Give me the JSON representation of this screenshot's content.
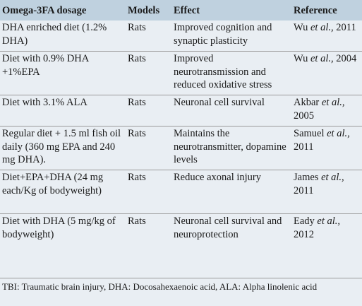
{
  "table": {
    "headers": [
      "Omega-3FA dosage",
      "Models",
      "Effect",
      "Reference"
    ],
    "rows": [
      {
        "dosage": "DHA enriched diet (1.2% DHA)",
        "model": "Rats",
        "effect": "Improved cognition and synaptic plasticity",
        "ref_author": "Wu",
        "ref_etal": "et al.,",
        "ref_year": "2011"
      },
      {
        "dosage": "Diet with 0.9% DHA +1%EPA",
        "model": "Rats",
        "effect": "Improved neurotransmission and reduced oxidative stress",
        "ref_author": "Wu",
        "ref_etal": "et al.,",
        "ref_year": "2004"
      },
      {
        "dosage": "Diet with 3.1% ALA",
        "model": "Rats",
        "effect": "Neuronal cell survival",
        "ref_author": "Akbar",
        "ref_etal": "et al.,",
        "ref_year": "2005"
      },
      {
        "dosage": "Regular diet + 1.5 ml fish oil daily (360 mg EPA and 240 mg DHA).",
        "model": "Rats",
        "effect": "Maintains the neurotransmitter, dopamine levels",
        "ref_author": "Samuel",
        "ref_etal": "et al.,",
        "ref_year": "2011"
      },
      {
        "dosage": "Diet+EPA+DHA (24 mg each/Kg of bodyweight)",
        "model": "Rats",
        "effect": "Reduce axonal injury",
        "ref_author": "James",
        "ref_etal": "et al.,",
        "ref_year": "2011"
      },
      {
        "dosage": "Diet with DHA (5 mg/kg of bodyweight)",
        "model": "Rats",
        "effect": "Neuronal cell survival and neuroprotection",
        "ref_author": "Eady",
        "ref_etal": "et al.,",
        "ref_year": "2012"
      }
    ]
  },
  "footnote": "TBI: Traumatic brain injury, DHA: Docosahexaenoic acid, ALA: Alpha linolenic acid"
}
